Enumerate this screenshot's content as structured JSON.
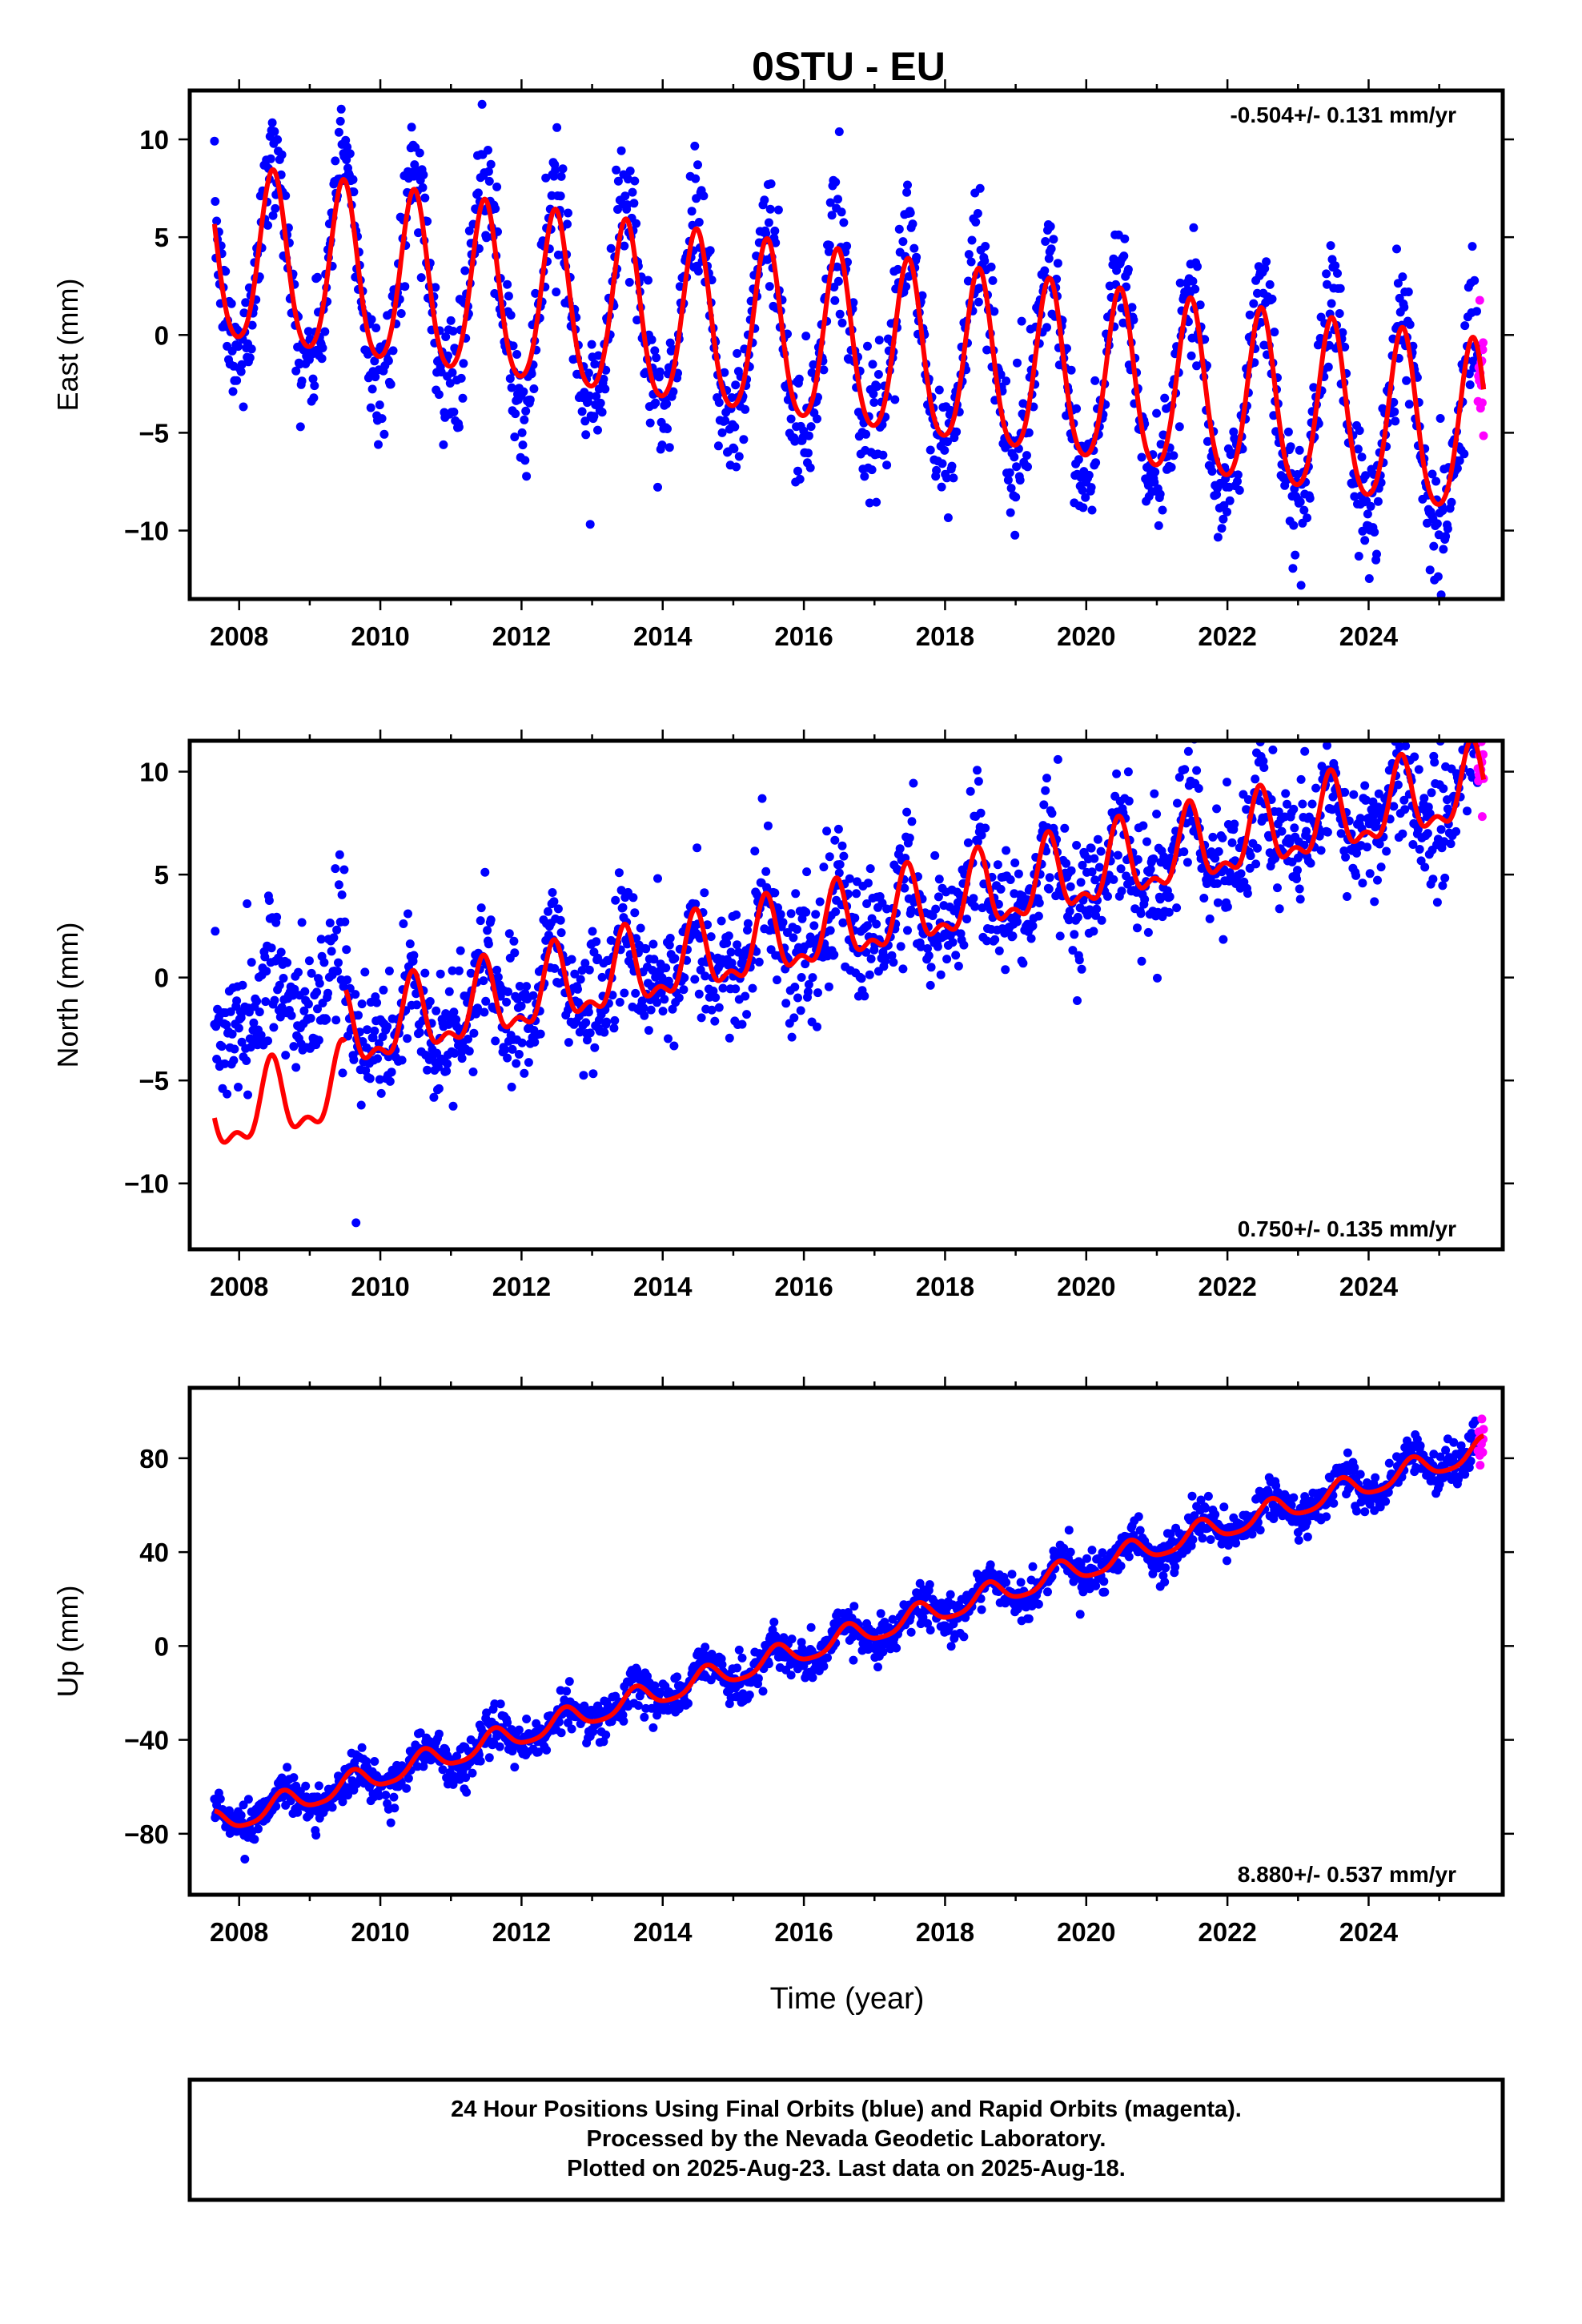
{
  "title": "0STU - EU",
  "xlabel": "Time (year)",
  "colors": {
    "final": "#0000ff",
    "rapid": "#ff00ff",
    "model": "#ff0000",
    "frame": "#000000"
  },
  "footer": {
    "line1": "24 Hour Positions Using Final Orbits (blue) and Rapid Orbits (magenta).",
    "line2": "Processed by the Nevada Geodetic Laboratory.",
    "line3": "Plotted on 2025-Aug-23. Last data on 2025-Aug-18."
  },
  "chart_data": [
    {
      "type": "scatter",
      "component": "east",
      "ylabel": "East (mm)",
      "rate_label": "-0.504+/- 0.131 mm/yr",
      "rate_position": "top-right",
      "xlim": [
        2007.3,
        2025.9
      ],
      "ylim": [
        -13.5,
        12.5
      ],
      "xticks": [
        2008,
        2010,
        2012,
        2014,
        2016,
        2018,
        2020,
        2022,
        2024
      ],
      "yticks": [
        -10,
        -5,
        0,
        5,
        10
      ],
      "data_start": 2007.65,
      "data_end": 2025.63,
      "rapid_start": 2025.55,
      "model": {
        "offset_2008": 3.7,
        "rate_mm_yr": -0.504,
        "annual_amp_mm": 4.4,
        "annual_peak": 0.48,
        "semiannual_amp_mm": 0.6
      },
      "scatter": {
        "annual_amp_mm": 5.4,
        "noise_mm": 1.4
      },
      "series": [
        {
          "name": "Final Orbits",
          "color": "#0000ff"
        },
        {
          "name": "Rapid Orbits",
          "color": "#ff00ff"
        },
        {
          "name": "Model",
          "color": "#ff0000"
        }
      ]
    },
    {
      "type": "scatter",
      "component": "north",
      "ylabel": "North (mm)",
      "rate_label": "0.750+/- 0.135 mm/yr",
      "rate_position": "bottom-right",
      "xlim": [
        2007.3,
        2025.9
      ],
      "ylim": [
        -13.2,
        11.5
      ],
      "xticks": [
        2008,
        2010,
        2012,
        2014,
        2016,
        2018,
        2020,
        2022,
        2024
      ],
      "yticks": [
        -10,
        -5,
        0,
        5,
        10
      ],
      "data_start": 2007.65,
      "data_end": 2025.63,
      "rapid_start": 2025.55,
      "model": {
        "offset_2008": -6.6,
        "rate_mm_yr": 0.75,
        "annual_amp_mm": 1.7,
        "annual_peak": 0.46,
        "semiannual_amp_mm": 0.8,
        "step_year": 2009.5,
        "step_mm": 2.6
      },
      "scatter": {
        "annual_amp_mm": 1.5,
        "noise_mm": 1.5,
        "early_offset_mm": 5.0
      },
      "series": [
        {
          "name": "Final Orbits",
          "color": "#0000ff"
        },
        {
          "name": "Rapid Orbits",
          "color": "#ff00ff"
        },
        {
          "name": "Model",
          "color": "#ff0000"
        }
      ]
    },
    {
      "type": "scatter",
      "component": "up",
      "ylabel": "Up (mm)",
      "rate_label": "8.880+/- 0.537 mm/yr",
      "rate_position": "bottom-right",
      "xlim": [
        2007.3,
        2025.9
      ],
      "ylim": [
        -106,
        110
      ],
      "xticks": [
        2008,
        2010,
        2012,
        2014,
        2016,
        2018,
        2020,
        2022,
        2024
      ],
      "yticks": [
        -80,
        -40,
        0,
        40,
        80
      ],
      "data_start": 2007.65,
      "data_end": 2025.63,
      "rapid_start": 2025.55,
      "model": {
        "offset_2008": -73.0,
        "rate_mm_yr": 8.88,
        "annual_amp_mm": 5.0,
        "annual_peak": 0.62,
        "semiannual_amp_mm": 1.0
      },
      "scatter": {
        "annual_amp_mm": 6.0,
        "noise_mm": 4.0
      },
      "series": [
        {
          "name": "Final Orbits",
          "color": "#0000ff"
        },
        {
          "name": "Rapid Orbits",
          "color": "#ff00ff"
        },
        {
          "name": "Model",
          "color": "#ff0000"
        }
      ]
    }
  ]
}
